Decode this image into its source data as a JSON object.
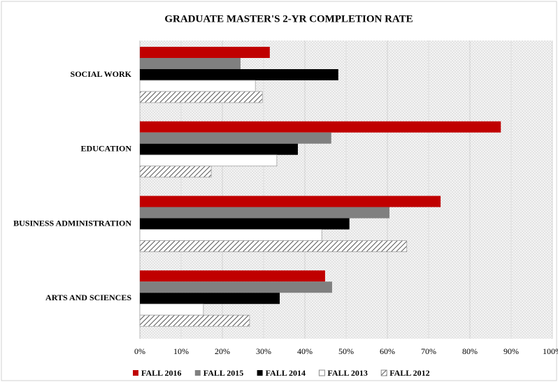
{
  "chart_data": {
    "type": "barh",
    "title": "GRADUATE MASTER'S 2-YR COMPLETION RATE",
    "categories": [
      "SOCIAL WORK",
      "EDUCATION",
      "BUSINESS ADMINISTRATION",
      "ARTS AND SCIENCES"
    ],
    "series": [
      {
        "name": "FALL 2016",
        "color": "#c00000",
        "values": [
          31.5,
          87.5,
          72.9,
          44.9
        ]
      },
      {
        "name": "FALL 2015",
        "color": "#808080",
        "values": [
          24.4,
          46.4,
          60.5,
          46.6
        ]
      },
      {
        "name": "FALL 2014",
        "color": "#000000",
        "values": [
          48.1,
          38.3,
          50.8,
          33.9
        ]
      },
      {
        "name": "FALL 2013",
        "color": "#ffffff",
        "values": [
          28.0,
          33.2,
          44.1,
          15.4
        ]
      },
      {
        "name": "FALL 2012",
        "color": "#7f7f7f",
        "pattern": "hatch",
        "values": [
          29.7,
          17.3,
          64.7,
          26.6
        ]
      }
    ],
    "xlim": [
      0,
      100
    ],
    "xticks": [
      {
        "value": 0,
        "label": "0%"
      },
      {
        "value": 10,
        "label": "10%"
      },
      {
        "value": 20,
        "label": "20%"
      },
      {
        "value": 30,
        "label": "30%"
      },
      {
        "value": 40,
        "label": "40%"
      },
      {
        "value": 50,
        "label": "50%"
      },
      {
        "value": 60,
        "label": "60%"
      },
      {
        "value": 70,
        "label": "70%"
      },
      {
        "value": 80,
        "label": "80%"
      },
      {
        "value": 90,
        "label": "90%"
      },
      {
        "value": 100,
        "label": "100%"
      }
    ],
    "grid": true,
    "legend": "bottom"
  }
}
